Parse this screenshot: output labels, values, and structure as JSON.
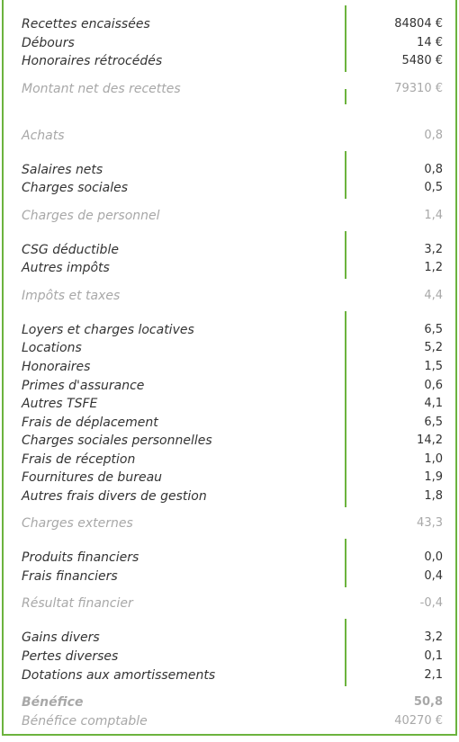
{
  "sections": [
    {
      "rows": [
        {
          "label": "Recettes encaissées",
          "value": "84804 €"
        },
        {
          "label": "Débours",
          "value": "14 €"
        },
        {
          "label": "Honoraires rétrocédés",
          "value": "5480 €"
        }
      ],
      "total": {
        "label": "Montant net des recettes",
        "value": "79310 €"
      }
    },
    {
      "rows": [],
      "total": {
        "label": "Achats",
        "value": "0,8"
      }
    },
    {
      "rows": [
        {
          "label": "Salaires nets",
          "value": "0,8"
        },
        {
          "label": "Charges sociales",
          "value": "0,5"
        }
      ],
      "total": {
        "label": "Charges de personnel",
        "value": "1,4"
      }
    },
    {
      "rows": [
        {
          "label": "CSG déductible",
          "value": "3,2"
        },
        {
          "label": "Autres impôts",
          "value": "1,2"
        }
      ],
      "total": {
        "label": "Impôts et taxes",
        "value": "4,4"
      }
    },
    {
      "rows": [
        {
          "label": "Loyers et charges locatives",
          "value": "6,5"
        },
        {
          "label": "Locations",
          "value": "5,2"
        },
        {
          "label": "Honoraires",
          "value": "1,5"
        },
        {
          "label": "Primes d'assurance",
          "value": "0,6"
        },
        {
          "label": "Autres TSFE",
          "value": "4,1"
        },
        {
          "label": "Frais de déplacement",
          "value": "6,5"
        },
        {
          "label": "Charges sociales personnelles",
          "value": "14,2"
        },
        {
          "label": "Frais de réception",
          "value": "1,0"
        },
        {
          "label": "Fournitures de bureau",
          "value": "1,9"
        },
        {
          "label": "Autres frais divers de gestion",
          "value": "1,8"
        }
      ],
      "total": {
        "label": "Charges externes",
        "value": "43,3"
      }
    },
    {
      "rows": [
        {
          "label": "Produits financiers",
          "value": "0,0"
        },
        {
          "label": "Frais financiers",
          "value": "0,4"
        }
      ],
      "total": {
        "label": "Résultat financier",
        "value": "-0,4"
      }
    },
    {
      "rows": [
        {
          "label": "Gains divers",
          "value": "3,2"
        },
        {
          "label": "Pertes diverses",
          "value": "0,1"
        },
        {
          "label": "Dotations aux amortissements",
          "value": "2,1"
        }
      ],
      "total": {
        "label": "Bénéfice",
        "value": "50,8"
      }
    }
  ],
  "footer": {
    "label": "Bénéfice comptable",
    "value": "40270 €"
  }
}
